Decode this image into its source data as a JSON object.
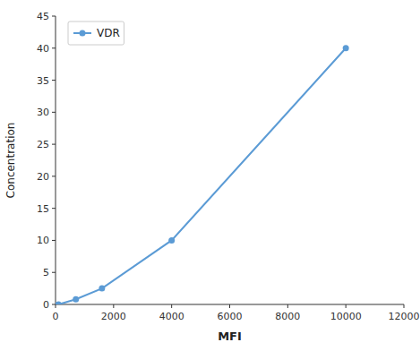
{
  "chart_data": {
    "type": "line",
    "x": [
      100,
      700,
      1600,
      4000,
      10000
    ],
    "series": [
      {
        "name": "VDR",
        "color": "#5B9BD5",
        "marker": "circle",
        "values": [
          0,
          0.8,
          2.5,
          10,
          40
        ]
      }
    ],
    "xlabel": "MFI",
    "ylabel": "Concentration",
    "xlim": [
      0,
      12000
    ],
    "ylim": [
      0,
      45
    ],
    "xticks": [
      0,
      2000,
      4000,
      6000,
      8000,
      10000,
      12000
    ],
    "yticks": [
      0,
      5,
      10,
      15,
      20,
      25,
      30,
      35,
      40,
      45
    ],
    "legend": "upper left",
    "grid": false
  }
}
